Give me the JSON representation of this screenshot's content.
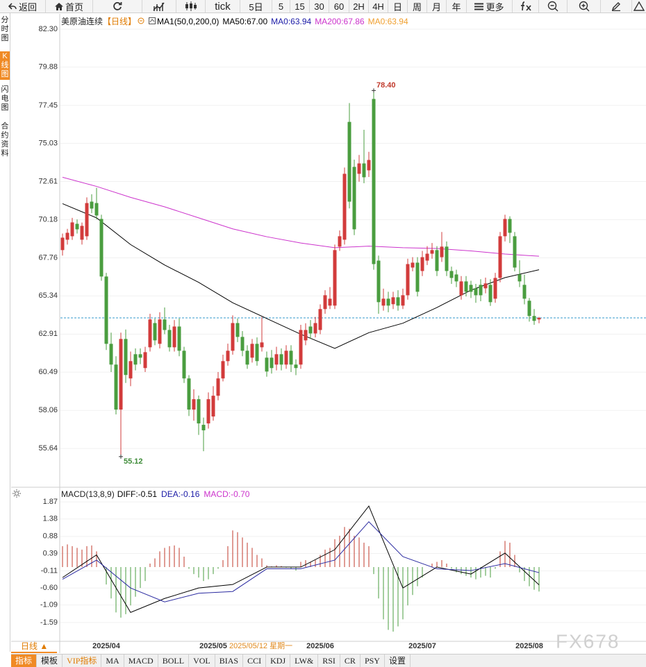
{
  "toolbar": {
    "buttons": [
      "返回",
      "首页",
      "tick",
      "5日",
      "5",
      "15",
      "30",
      "60",
      "2H",
      "4H",
      "日",
      "周",
      "月",
      "年",
      "更多"
    ]
  },
  "sidebar": {
    "items": [
      "分时图",
      "K线图",
      "闪电图",
      "合约资料"
    ]
  },
  "chart_data": [
    {
      "type": "candlestick",
      "title": "美原油连续",
      "period": "【日线】",
      "legend": [
        {
          "text": "MA1(50,0,200,0)",
          "color": "#000000"
        },
        {
          "text": "MA50:67.00",
          "color": "#000000"
        },
        {
          "text": "MA0:63.94",
          "color": "#1a1aa6"
        },
        {
          "text": "MA200:67.86",
          "color": "#cc33cc"
        },
        {
          "text": "MA0:63.94",
          "color": "#f0a030"
        }
      ],
      "up_color": "#d23b3b",
      "down_color": "#4a9d3f",
      "categories": [
        null,
        null,
        null,
        null,
        null,
        null,
        null,
        null,
        null,
        "2025/04",
        null,
        null,
        null,
        null,
        null,
        null,
        null,
        null,
        null,
        null,
        null,
        null,
        null,
        null,
        null,
        null,
        null,
        null,
        null,
        null,
        null,
        "2025/05",
        null,
        null,
        null,
        null,
        null,
        null,
        null,
        null,
        null,
        null,
        null,
        null,
        null,
        null,
        null,
        null,
        null,
        null,
        null,
        null,
        null,
        "2025/06",
        null,
        null,
        null,
        null,
        null,
        null,
        null,
        null,
        null,
        null,
        null,
        null,
        null,
        null,
        null,
        null,
        null,
        null,
        null,
        null,
        "2025/07",
        null,
        null,
        null,
        null,
        null,
        null,
        null,
        null,
        null,
        null,
        null,
        null,
        null,
        null,
        null,
        null,
        null,
        null,
        null,
        null,
        null,
        "2025/08",
        null,
        null
      ],
      "open": [
        68.25,
        68.91,
        69.13,
        69.92,
        68.91,
        69.13,
        71.33,
        71.24,
        70.23,
        66.57,
        62.29,
        60.97,
        58.11,
        62.6,
        60.09,
        61.63,
        61.63,
        60.75,
        62.07,
        63.61,
        62.29,
        63.84,
        63.17,
        62.07,
        63.39,
        61.85,
        60.09,
        58.11,
        58.77,
        57.14,
        57.23,
        57.67,
        58.99,
        60.09,
        61.19,
        61.85,
        63.61,
        62.73,
        61.85,
        61.41,
        62.29,
        62.07,
        61.41,
        61.41,
        60.97,
        61.63,
        60.97,
        61.85,
        60.97,
        60.97,
        62.51,
        63.39,
        62.95,
        63.17,
        64.5,
        64.72,
        64.72,
        68.47,
        68.91,
        76.4,
        73.54,
        73.1,
        73.76,
        73.32,
        77.86,
        67.58,
        64.72,
        65.16,
        64.81,
        65.25,
        64.72,
        65.38,
        67.14,
        67.45,
        66.92,
        67.58,
        68.02,
        68.25,
        67.8,
        68.47,
        66.92,
        66.7,
        65.38,
        66.26,
        66.04,
        65.82,
        66.04,
        65.82,
        66.04,
        65.16,
        66.48,
        69.13,
        70.23,
        69.13,
        66.7,
        66.04,
        65.03,
        64.06,
        63.84
      ],
      "high": [
        69.3,
        69.6,
        70.3,
        70.2,
        70.0,
        71.6,
        71.8,
        72.21,
        70.5,
        66.8,
        63.0,
        61.5,
        63.0,
        63.2,
        61.8,
        62.0,
        62.0,
        62.1,
        64.2,
        63.9,
        64.3,
        64.6,
        63.5,
        63.8,
        63.9,
        62.1,
        60.3,
        59.4,
        59.0,
        57.6,
        59.2,
        59.6,
        60.5,
        61.6,
        62.3,
        64.1,
        63.9,
        63.1,
        62.2,
        62.6,
        62.7,
        64.0,
        61.8,
        61.9,
        62.1,
        62.0,
        62.2,
        62.2,
        61.3,
        63.5,
        63.6,
        63.8,
        64.0,
        64.8,
        65.7,
        65.9,
        68.6,
        69.5,
        73.5,
        77.6,
        74.0,
        74.3,
        75.9,
        74.5,
        78.4,
        67.9,
        65.8,
        65.6,
        65.6,
        65.7,
        65.8,
        67.7,
        67.8,
        67.8,
        68.2,
        68.5,
        68.7,
        68.5,
        69.4,
        68.8,
        67.2,
        67.0,
        66.6,
        66.6,
        66.3,
        66.1,
        66.4,
        66.5,
        66.4,
        66.8,
        69.4,
        70.5,
        70.4,
        69.4,
        67.6,
        66.7,
        65.2,
        64.5,
        64.0
      ],
      "low": [
        67.9,
        68.6,
        68.9,
        69.3,
        68.6,
        68.9,
        70.6,
        70.2,
        66.3,
        61.9,
        60.5,
        57.8,
        55.12,
        59.8,
        59.6,
        60.6,
        61.0,
        60.5,
        61.8,
        62.2,
        62.0,
        62.9,
        61.8,
        61.8,
        61.5,
        59.8,
        57.7,
        57.4,
        56.5,
        55.46,
        56.9,
        57.4,
        58.7,
        59.9,
        60.9,
        61.6,
        62.4,
        61.5,
        60.7,
        61.1,
        60.9,
        61.8,
        60.2,
        60.4,
        60.6,
        60.6,
        60.7,
        60.5,
        60.3,
        60.7,
        62.2,
        62.6,
        62.7,
        62.9,
        64.2,
        64.5,
        64.5,
        68.2,
        68.6,
        70.9,
        69.2,
        72.6,
        72.5,
        72.9,
        67.0,
        64.2,
        64.4,
        64.3,
        64.5,
        64.4,
        64.5,
        65.1,
        66.9,
        65.3,
        66.6,
        67.3,
        67.7,
        66.6,
        67.5,
        66.6,
        66.1,
        65.9,
        65.1,
        65.3,
        65.2,
        64.9,
        65.0,
        65.5,
        64.7,
        64.9,
        66.2,
        68.8,
        68.7,
        66.9,
        65.9,
        64.8,
        63.7,
        63.5,
        63.6
      ],
      "close": [
        69.04,
        69.35,
        70.01,
        69.57,
        69.79,
        71.24,
        70.89,
        70.45,
        66.57,
        62.29,
        60.97,
        58.11,
        62.6,
        60.31,
        61.19,
        60.97,
        61.41,
        61.76,
        63.84,
        62.51,
        63.84,
        63.17,
        62.07,
        63.39,
        61.85,
        60.09,
        58.11,
        58.77,
        57.23,
        56.79,
        58.77,
        58.99,
        60.09,
        61.19,
        61.85,
        63.61,
        62.73,
        61.85,
        60.97,
        62.29,
        61.19,
        62.38,
        60.53,
        60.75,
        61.63,
        60.97,
        61.85,
        60.97,
        60.75,
        63.17,
        63.17,
        62.95,
        63.61,
        64.5,
        65.38,
        65.16,
        68.25,
        69.13,
        73.1,
        71.33,
        69.57,
        73.76,
        72.88,
        73.98,
        67.36,
        64.94,
        65.16,
        64.72,
        65.25,
        64.72,
        65.38,
        67.36,
        67.45,
        65.6,
        67.8,
        68.02,
        68.25,
        66.92,
        68.47,
        66.92,
        66.48,
        66.26,
        66.26,
        65.6,
        65.6,
        65.38,
        65.38,
        66.13,
        64.94,
        66.48,
        69.13,
        70.23,
        69.35,
        67.14,
        66.26,
        65.16,
        64.06,
        63.75,
        63.94
      ],
      "line_index": [
        0,
        7,
        14,
        21,
        28,
        35,
        42,
        49,
        56,
        63,
        70,
        77,
        84,
        91,
        98
      ],
      "lines": [
        {
          "color": "#cc33cc",
          "values": [
            72.88,
            72.3,
            71.6,
            71.0,
            70.3,
            69.6,
            69.1,
            68.7,
            68.4,
            68.5,
            68.4,
            68.35,
            68.2,
            68.0,
            67.86
          ]
        },
        {
          "color": "#000000",
          "values": [
            71.2,
            70.3,
            68.6,
            67.3,
            66.2,
            64.9,
            63.9,
            62.9,
            62.0,
            63.0,
            63.6,
            64.6,
            65.7,
            66.5,
            67.0
          ]
        }
      ],
      "last_price": 63.94,
      "last_price_color": "#3399cc",
      "annotations": [
        {
          "index": 64,
          "value": 78.4,
          "label": "78.40",
          "color": "#c0392b"
        },
        {
          "index": 12,
          "value": 55.12,
          "label": "55.12",
          "color": "#3d8b37"
        }
      ],
      "cursor_label": "2025/05/12 星期一",
      "ylim": [
        53.26,
        83.18
      ],
      "yticks": [
        {
          "value": 82.3,
          "label": "82.30"
        },
        79.88,
        77.45,
        75.03,
        72.61,
        70.18,
        67.76,
        65.34,
        62.91,
        60.49,
        58.06,
        55.64
      ],
      "grid": true
    },
    {
      "type": "macd",
      "title": "MACD(13,8,9)",
      "legend": [
        {
          "text": "DIFF:-0.51",
          "color": "#000000"
        },
        {
          "text": "DEA:-0.16",
          "color": "#1a1aa6"
        },
        {
          "text": "MACD:-0.70",
          "color": "#cc33cc"
        }
      ],
      "up_color": "#c0392b",
      "down_color": "#4a9d3f",
      "values": [
        0.6,
        0.65,
        0.6,
        0.55,
        0.5,
        0.6,
        0.62,
        0.45,
        0.0,
        -0.5,
        -0.9,
        -1.3,
        -1.45,
        -1.35,
        -1.1,
        -0.85,
        -0.6,
        -0.4,
        0.1,
        0.25,
        0.45,
        0.55,
        0.6,
        0.62,
        0.55,
        0.3,
        -0.05,
        -0.2,
        -0.3,
        -0.4,
        -0.35,
        -0.2,
        -0.05,
        0.2,
        0.6,
        1.05,
        1.0,
        0.85,
        0.7,
        0.55,
        0.35,
        0.25,
        0.05,
        0.02,
        0.05,
        0.03,
        -0.02,
        -0.05,
        -0.1,
        0.15,
        0.2,
        0.15,
        0.2,
        0.35,
        0.5,
        0.55,
        0.8,
        0.9,
        1.15,
        1.1,
        0.9,
        0.85,
        0.7,
        0.6,
        -0.2,
        -0.9,
        -1.5,
        -1.8,
        -1.85,
        -1.7,
        -1.5,
        -1.1,
        -0.8,
        -0.55,
        -0.3,
        0.0,
        0.1,
        0.15,
        0.2,
        0.1,
        -0.05,
        -0.15,
        -0.2,
        -0.25,
        -0.3,
        -0.35,
        -0.3,
        -0.25,
        -0.3,
        -0.05,
        0.45,
        0.75,
        0.7,
        0.35,
        -0.15,
        -0.4,
        -0.55,
        -0.65,
        -0.7
      ],
      "line_index": [
        0,
        7,
        14,
        21,
        28,
        35,
        42,
        49,
        56,
        63,
        70,
        77,
        84,
        91,
        98
      ],
      "lines": [
        {
          "color": "#000000",
          "values": [
            -0.3,
            0.35,
            -1.3,
            -0.9,
            -0.6,
            -0.5,
            0.0,
            0.0,
            0.5,
            1.75,
            -0.6,
            0.0,
            -0.2,
            0.4,
            -0.51
          ]
        },
        {
          "color": "#2a2aa0",
          "values": [
            -0.35,
            0.2,
            -0.6,
            -1.0,
            -0.75,
            -0.7,
            -0.05,
            -0.05,
            0.2,
            1.3,
            0.3,
            -0.05,
            -0.1,
            0.1,
            -0.16
          ]
        }
      ],
      "ylim": [
        -1.95,
        2.23
      ],
      "yticks": [
        1.87,
        1.38,
        0.88,
        0.39,
        -0.11,
        {
          "value": -0.6,
          "label": "-0.60"
        },
        -1.09,
        -1.59
      ],
      "grid": true
    }
  ],
  "footer": {
    "period": "日线 ▲",
    "tabs": [
      "指标",
      "模板",
      "VIP指标",
      "MA",
      "MACD",
      "BOLL",
      "VOL",
      "BIAS",
      "CCI",
      "KDJ",
      "LW&",
      "RSI",
      "CR",
      "PSY",
      "设置"
    ],
    "watermark": "FX678"
  }
}
